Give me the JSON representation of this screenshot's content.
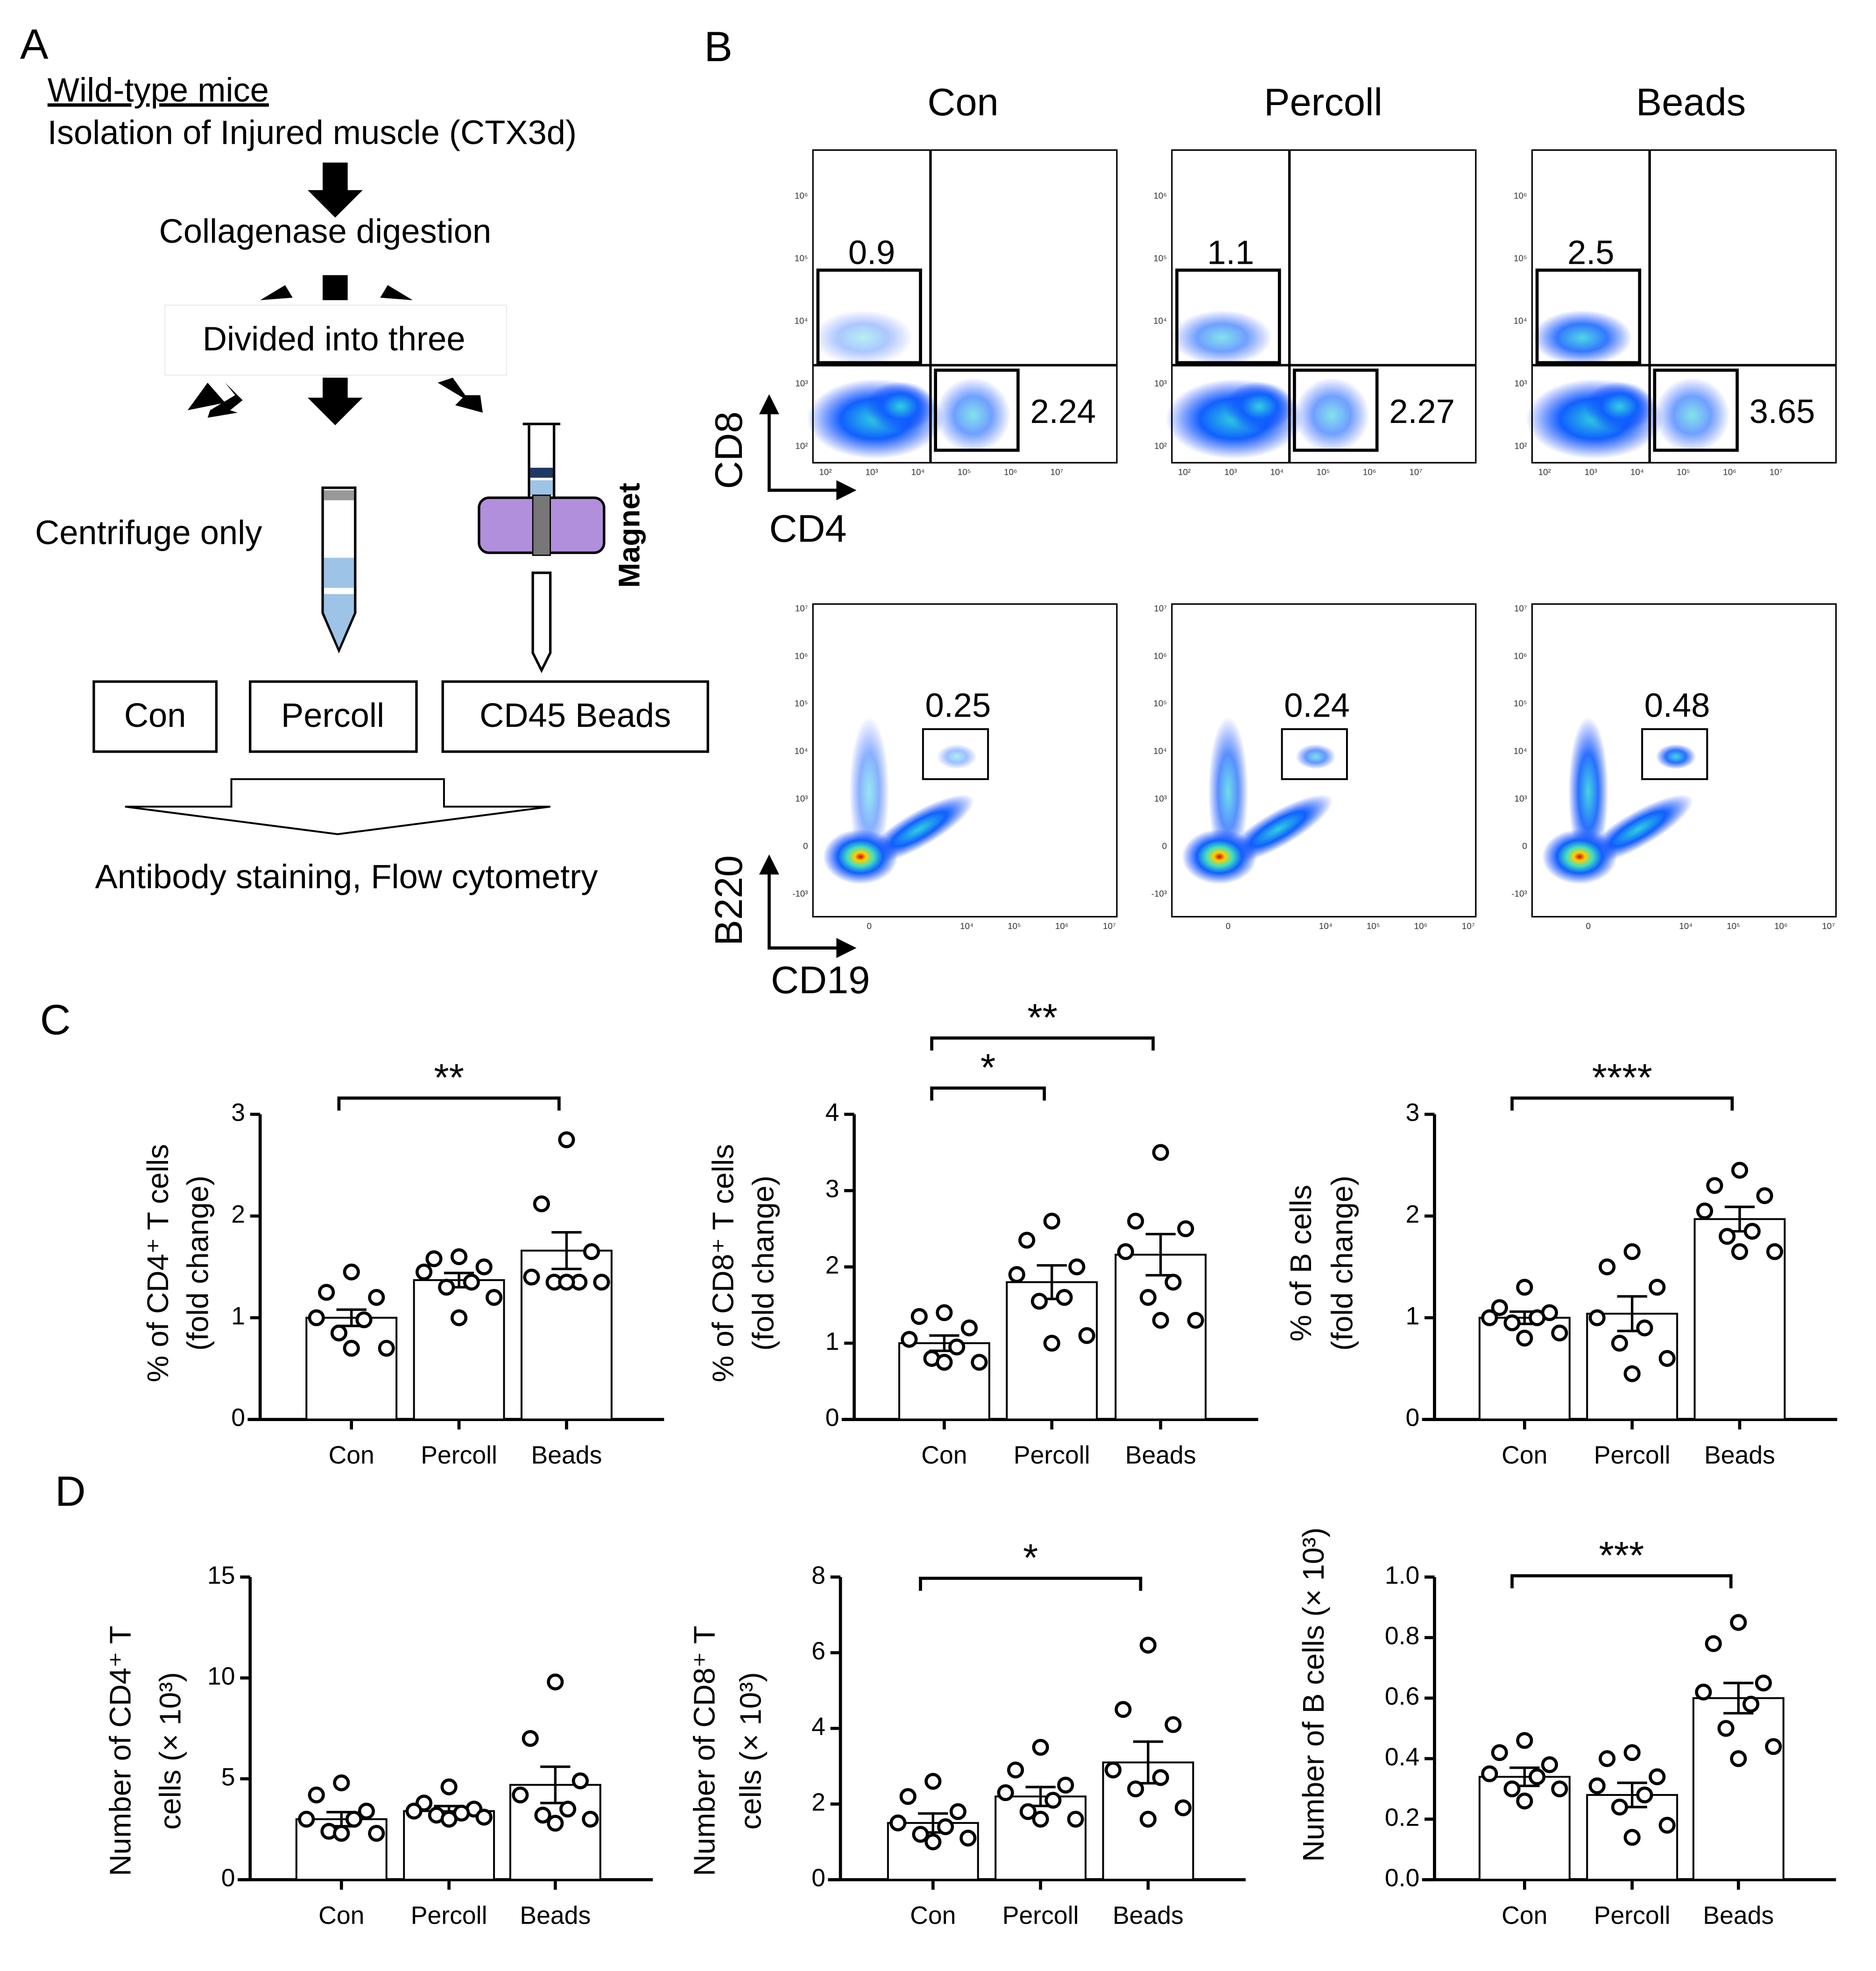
{
  "panel_labels": [
    "A",
    "B",
    "C",
    "D"
  ],
  "diagram": {
    "title": "Wild-type mice",
    "step1": "Isolation of Injured muscle (CTX3d)",
    "step2": "Collagenase digestion",
    "step3": "Divided into three",
    "centrifuge": "Centrifuge only",
    "magnet": "Magnet",
    "groups": [
      "Con",
      "Percoll",
      "CD45 Beads"
    ],
    "final": "Antibody staining, Flow cytometry"
  },
  "flow": {
    "columns": [
      "Con",
      "Percoll",
      "Beads"
    ],
    "rows": [
      {
        "y_label": "CD8",
        "x_label": "CD4",
        "xticks": [
          "10²",
          "10³",
          "10⁴",
          "10⁵",
          "10⁶",
          "10⁷"
        ],
        "yticks": [
          "10²",
          "10³",
          "10⁴",
          "10⁵",
          "10⁶"
        ],
        "gates": [
          [
            0.9,
            2.24
          ],
          [
            1.1,
            2.27
          ],
          [
            2.5,
            3.65
          ]
        ]
      },
      {
        "y_label": "B220",
        "x_label": "CD19",
        "xticks": [
          "0",
          "10⁴",
          "10⁵",
          "10⁶",
          "10⁷"
        ],
        "yticks": [
          "-10³",
          "0",
          "10³",
          "10⁴",
          "10⁵",
          "10⁶",
          "10⁷"
        ],
        "gates": [
          [
            0.25
          ],
          [
            0.24
          ],
          [
            0.48
          ]
        ]
      }
    ]
  },
  "chart_data": [
    {
      "type": "bar",
      "ylabel": [
        "% of CD4⁺ T cells",
        "(fold change)"
      ],
      "categories": [
        "Con",
        "Percoll",
        "Beads"
      ],
      "values": [
        1.0,
        1.37,
        1.66
      ],
      "errors": [
        0.08,
        0.07,
        0.18
      ],
      "points": [
        [
          1.45,
          1.25,
          1.2,
          1.0,
          0.98,
          0.85,
          0.7,
          0.7
        ],
        [
          1.6,
          1.58,
          1.5,
          1.45,
          1.35,
          1.3,
          1.2,
          1.0
        ],
        [
          2.75,
          2.12,
          1.65,
          1.4,
          1.35,
          1.35,
          1.35,
          1.35
        ]
      ],
      "ylim": [
        0,
        3
      ],
      "yticks": [
        0,
        1,
        2,
        3
      ],
      "significance": [
        {
          "label": "**",
          "from": 0,
          "to": 2
        }
      ]
    },
    {
      "type": "bar",
      "ylabel": [
        "% of CD8⁺ T cells",
        "(fold change)"
      ],
      "categories": [
        "Con",
        "Percoll",
        "Beads"
      ],
      "values": [
        1.0,
        1.8,
        2.16
      ],
      "errors": [
        0.1,
        0.22,
        0.27
      ],
      "points": [
        [
          1.4,
          1.35,
          1.2,
          1.05,
          0.95,
          0.8,
          0.75,
          0.75
        ],
        [
          2.6,
          2.35,
          2.0,
          1.9,
          1.6,
          1.55,
          1.1,
          1.0
        ],
        [
          3.5,
          2.6,
          2.5,
          2.2,
          1.8,
          1.6,
          1.3,
          1.3
        ]
      ],
      "ylim": [
        0,
        4
      ],
      "yticks": [
        0,
        1,
        2,
        3,
        4
      ],
      "significance": [
        {
          "label": "*",
          "from": 0,
          "to": 1
        },
        {
          "label": "**",
          "from": 0,
          "to": 2
        }
      ]
    },
    {
      "type": "bar",
      "ylabel": [
        "% of  B cells",
        "(fold change)"
      ],
      "categories": [
        "Con",
        "Percoll",
        "Beads"
      ],
      "values": [
        1.0,
        1.04,
        1.97
      ],
      "errors": [
        0.06,
        0.17,
        0.12
      ],
      "points": [
        [
          1.3,
          1.1,
          1.05,
          1.0,
          1.0,
          0.95,
          0.85,
          0.8
        ],
        [
          1.65,
          1.5,
          1.3,
          1.0,
          0.9,
          0.75,
          0.6,
          0.45
        ],
        [
          2.45,
          2.3,
          2.2,
          2.05,
          1.85,
          1.8,
          1.65,
          1.65
        ]
      ],
      "ylim": [
        0,
        3
      ],
      "yticks": [
        0,
        1,
        2,
        3
      ],
      "significance": [
        {
          "label": "****",
          "from": 0,
          "to": 2
        }
      ]
    },
    {
      "type": "bar",
      "ylabel": [
        "Number of CD4⁺ T",
        "cells (× 10³)"
      ],
      "categories": [
        "Con",
        "Percoll",
        "Beads"
      ],
      "values": [
        3.0,
        3.4,
        4.7
      ],
      "errors": [
        0.35,
        0.25,
        0.9
      ],
      "points": [
        [
          4.8,
          4.2,
          3.4,
          3.0,
          3.0,
          2.4,
          2.3,
          2.3
        ],
        [
          4.6,
          3.8,
          3.5,
          3.4,
          3.3,
          3.2,
          3.1,
          3.0
        ],
        [
          9.8,
          7.0,
          4.9,
          4.2,
          3.5,
          3.2,
          3.0,
          2.8
        ]
      ],
      "ylim": [
        0,
        15
      ],
      "yticks": [
        0,
        5,
        10,
        15
      ],
      "significance": []
    },
    {
      "type": "bar",
      "ylabel": [
        "Number of CD8⁺ T",
        "cells (× 10³)"
      ],
      "categories": [
        "Con",
        "Percoll",
        "Beads"
      ],
      "values": [
        1.5,
        2.2,
        3.1
      ],
      "errors": [
        0.25,
        0.25,
        0.55
      ],
      "points": [
        [
          2.6,
          2.2,
          1.8,
          1.5,
          1.4,
          1.2,
          1.1,
          1.0
        ],
        [
          3.5,
          2.9,
          2.5,
          2.3,
          2.1,
          1.8,
          1.6,
          1.6
        ],
        [
          6.2,
          4.5,
          4.1,
          2.9,
          2.7,
          2.4,
          1.9,
          1.6
        ]
      ],
      "ylim": [
        0,
        8
      ],
      "yticks": [
        0,
        2,
        4,
        6,
        8
      ],
      "significance": [
        {
          "label": "*",
          "from": 0,
          "to": 2
        }
      ]
    },
    {
      "type": "bar",
      "ylabel": [
        "Number of B cells (× 10³)"
      ],
      "categories": [
        "Con",
        "Percoll",
        "Beads"
      ],
      "values": [
        0.34,
        0.28,
        0.6
      ],
      "errors": [
        0.03,
        0.04,
        0.05
      ],
      "points": [
        [
          0.46,
          0.42,
          0.38,
          0.35,
          0.34,
          0.3,
          0.3,
          0.26
        ],
        [
          0.42,
          0.4,
          0.34,
          0.31,
          0.28,
          0.24,
          0.18,
          0.14
        ],
        [
          0.85,
          0.78,
          0.65,
          0.62,
          0.58,
          0.5,
          0.44,
          0.4
        ]
      ],
      "ylim": [
        0,
        1
      ],
      "yticks": [
        {
          "value": 0,
          "label": "0.0"
        },
        0.2,
        0.4,
        0.6,
        0.8,
        {
          "value": 1,
          "label": "1.0"
        }
      ],
      "significance": [
        {
          "label": "***",
          "from": 0,
          "to": 2
        }
      ]
    }
  ]
}
